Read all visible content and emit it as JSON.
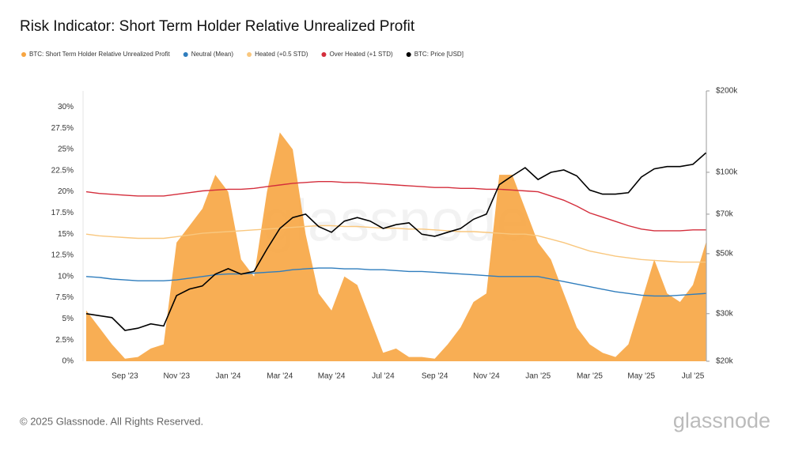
{
  "chart_data": {
    "type": "line",
    "title": "Risk Indicator: Short Term Holder Relative Unrealized Profit",
    "footer": "© 2025 Glassnode. All Rights Reserved.",
    "watermark": "glassnode",
    "logo": "glassnode",
    "categories": [
      null,
      null,
      null,
      "Sep '23",
      null,
      null,
      null,
      "Nov '23",
      null,
      null,
      null,
      "Jan '24",
      null,
      null,
      null,
      "Mar '24",
      null,
      null,
      null,
      "May '24",
      null,
      null,
      null,
      "Jul '24",
      null,
      null,
      null,
      "Sep '24",
      null,
      null,
      null,
      "Nov '24",
      null,
      null,
      null,
      "Jan '25",
      null,
      null,
      null,
      "Mar '25",
      null,
      null,
      null,
      "May '25",
      null,
      null,
      null,
      "Jul '25",
      null
    ],
    "ylim": [
      0,
      31.9
    ],
    "yticks": [
      {
        "value": 0,
        "label": "0%"
      },
      {
        "value": 2.5,
        "label": "2.5%"
      },
      {
        "value": 5,
        "label": "5%"
      },
      {
        "value": 7.5,
        "label": "7.5%"
      },
      {
        "value": 10,
        "label": "10%"
      },
      {
        "value": 12.5,
        "label": "12.5%"
      },
      {
        "value": 15,
        "label": "15%"
      },
      {
        "value": 17.5,
        "label": "17.5%"
      },
      {
        "value": 20,
        "label": "20%"
      },
      {
        "value": 22.5,
        "label": "22.5%"
      },
      {
        "value": 25,
        "label": "25%"
      },
      {
        "value": 27.5,
        "label": "27.5%"
      },
      {
        "value": 30,
        "label": "30%"
      }
    ],
    "y2lim": [
      20000,
      200000
    ],
    "y2log": true,
    "y2ticks": [
      {
        "value": 20000,
        "label": "$20k"
      },
      {
        "value": 30000,
        "label": "$30k"
      },
      {
        "value": 50000,
        "label": "$50k"
      },
      {
        "value": 70000,
        "label": "$70k"
      },
      {
        "value": 100000,
        "label": "$100k"
      },
      {
        "value": 200000,
        "label": "$200k"
      }
    ],
    "grid": false,
    "series": [
      {
        "name": "BTC: Short Term Holder Relative Unrealized Profit",
        "color": "#f7a541",
        "style": "area",
        "values": [
          6,
          4,
          2,
          0.3,
          0.5,
          1.5,
          2,
          14,
          16,
          18,
          22,
          20,
          12,
          10,
          20,
          27,
          25,
          15,
          8,
          6,
          10,
          9,
          5,
          1,
          1.5,
          0.5,
          0.5,
          0.3,
          2,
          4,
          7,
          8,
          22,
          22,
          18,
          14,
          12,
          8,
          4,
          2,
          1,
          0.5,
          2,
          7,
          12,
          8,
          7,
          9,
          14
        ]
      },
      {
        "name": "Neutral (Mean)",
        "color": "#2f7dbd",
        "values": [
          10,
          9.9,
          9.7,
          9.6,
          9.5,
          9.5,
          9.5,
          9.6,
          9.8,
          10,
          10.2,
          10.3,
          10.3,
          10.4,
          10.5,
          10.6,
          10.8,
          10.9,
          11,
          11,
          10.9,
          10.9,
          10.8,
          10.8,
          10.7,
          10.6,
          10.6,
          10.5,
          10.4,
          10.3,
          10.2,
          10.1,
          10,
          10,
          10,
          10,
          9.7,
          9.4,
          9.1,
          8.8,
          8.5,
          8.2,
          8,
          7.8,
          7.7,
          7.7,
          7.8,
          7.9,
          8
        ]
      },
      {
        "name": "Heated (+0.5 STD)",
        "color": "#f9c77e",
        "values": [
          15,
          14.8,
          14.7,
          14.6,
          14.5,
          14.5,
          14.5,
          14.7,
          14.9,
          15.1,
          15.2,
          15.3,
          15.4,
          15.5,
          15.6,
          15.7,
          15.8,
          15.9,
          16,
          16,
          15.9,
          15.9,
          15.8,
          15.7,
          15.7,
          15.6,
          15.6,
          15.5,
          15.4,
          15.3,
          15.3,
          15.2,
          15.1,
          15,
          15,
          14.8,
          14.4,
          14,
          13.5,
          13,
          12.7,
          12.4,
          12.2,
          12,
          11.9,
          11.8,
          11.7,
          11.7,
          11.7
        ]
      },
      {
        "name": "Over Heated (+1 STD)",
        "color": "#d42e3c",
        "values": [
          20,
          19.8,
          19.7,
          19.6,
          19.5,
          19.5,
          19.5,
          19.7,
          19.9,
          20.1,
          20.2,
          20.3,
          20.3,
          20.4,
          20.6,
          20.8,
          21,
          21.1,
          21.2,
          21.2,
          21.1,
          21.1,
          21,
          20.9,
          20.8,
          20.7,
          20.6,
          20.5,
          20.5,
          20.4,
          20.4,
          20.3,
          20.3,
          20.2,
          20.1,
          20,
          19.5,
          19,
          18.3,
          17.5,
          17,
          16.5,
          16,
          15.6,
          15.4,
          15.4,
          15.4,
          15.5,
          15.5
        ]
      },
      {
        "name": "BTC: Price [USD]",
        "color": "#000000",
        "axis": "y2",
        "values": [
          30000,
          29500,
          29000,
          26000,
          26500,
          27500,
          27000,
          35000,
          37000,
          38000,
          42000,
          44000,
          42000,
          43000,
          52000,
          62000,
          68000,
          70000,
          63000,
          60000,
          66000,
          68000,
          66000,
          62000,
          64000,
          65000,
          59000,
          58000,
          60000,
          62000,
          67000,
          70000,
          90000,
          97000,
          104000,
          94000,
          100000,
          102000,
          97000,
          86000,
          83000,
          83000,
          84000,
          96000,
          103000,
          105000,
          105000,
          107000,
          118000
        ]
      }
    ]
  }
}
